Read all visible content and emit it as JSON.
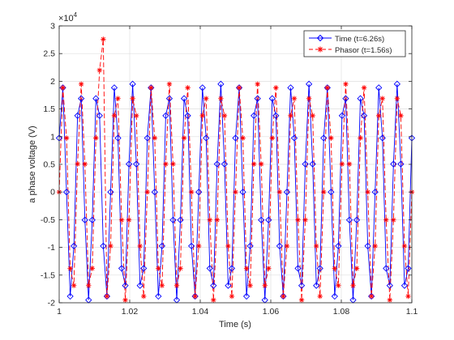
{
  "chart_data": {
    "type": "line",
    "title": "",
    "xlabel": "Time (s)",
    "ylabel": "a phase voltage (V)",
    "xlim": [
      1.0,
      1.1
    ],
    "ylim": [
      -2.0,
      3.0
    ],
    "y_exponent_label": "×10",
    "y_exponent_power": "4",
    "x_ticks": [
      1.0,
      1.02,
      1.04,
      1.06,
      1.08,
      1.1
    ],
    "x_tick_labels": [
      "1",
      "1.02",
      "1.04",
      "1.06",
      "1.08",
      "1.1"
    ],
    "y_ticks": [
      -2.0,
      -1.5,
      -1.0,
      -0.5,
      0,
      0.5,
      1.0,
      1.5,
      2.0,
      2.5,
      3.0
    ],
    "y_tick_labels": [
      "-2",
      "-1.5",
      "-1",
      "-0.5",
      "0",
      "0.5",
      "1",
      "1.5",
      "2",
      "2.5",
      "3"
    ],
    "grid": true,
    "legend_position": "top-right",
    "series": [
      {
        "name": "Time (t=6.26s)",
        "color": "#0000ff",
        "line_style": "solid",
        "marker": "diamond",
        "amplitude": 1.95,
        "frequency_hz": 200,
        "phase_deg": 30,
        "x_start": 1.0,
        "x_end": 1.1,
        "marker_count": 96
      },
      {
        "name": "Phasor (t=1.56s)",
        "color": "#ff0000",
        "line_style": "dashed",
        "marker": "asterisk",
        "amplitude": 1.95,
        "frequency_hz": 200,
        "phase_deg": 0,
        "x_start": 1.0,
        "x_end": 1.1,
        "marker_count": 96,
        "spike": {
          "x": 1.0125,
          "y": 2.76,
          "neighbor_y": 2.2
        }
      }
    ]
  }
}
